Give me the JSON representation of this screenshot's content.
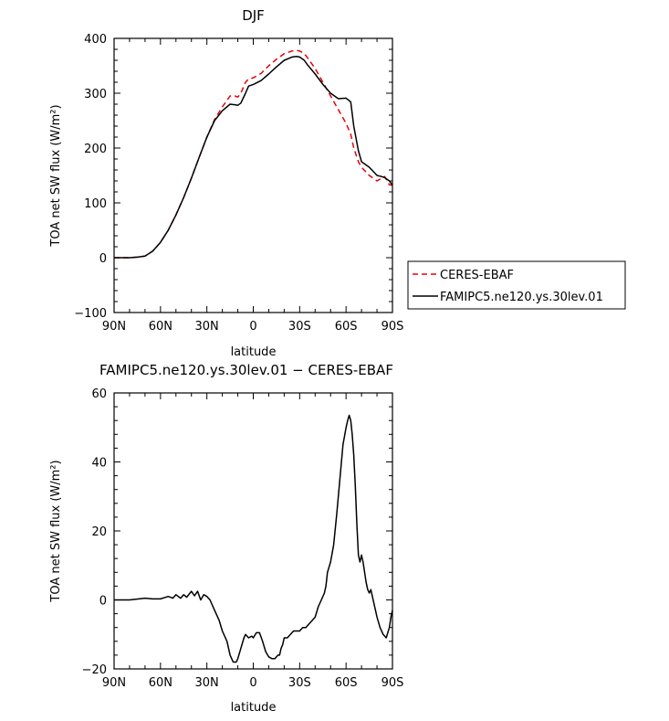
{
  "chart_data": [
    {
      "type": "line",
      "title": "DJF",
      "xlabel": "latitude",
      "ylabel": "TOA net SW flux (W/m²)",
      "x_ticks": [
        {
          "value": -90,
          "label": "90N"
        },
        {
          "value": -60,
          "label": "60N"
        },
        {
          "value": -30,
          "label": "30N"
        },
        {
          "value": 0,
          "label": "0"
        },
        {
          "value": 30,
          "label": "30S"
        },
        {
          "value": 60,
          "label": "60S"
        },
        {
          "value": 90,
          "label": "90S"
        }
      ],
      "y_ticks": [
        -100,
        0,
        100,
        200,
        300,
        400
      ],
      "xlim": [
        -90,
        90
      ],
      "ylim": [
        -100,
        400
      ],
      "legend_position": "outside-right",
      "series": [
        {
          "name": "CERES-EBAF",
          "color": "#e8000b",
          "dash": "dashed",
          "x": [
            -90,
            -80,
            -75,
            -70,
            -65,
            -60,
            -55,
            -50,
            -45,
            -40,
            -35,
            -30,
            -25,
            -20,
            -15,
            -12,
            -10,
            -8,
            -5,
            -3,
            0,
            5,
            10,
            15,
            20,
            25,
            28,
            30,
            33,
            35,
            40,
            45,
            50,
            55,
            60,
            63,
            65,
            68,
            70,
            75,
            80,
            83,
            85,
            88,
            90
          ],
          "y": [
            0,
            0,
            1,
            3,
            12,
            28,
            50,
            78,
            110,
            145,
            183,
            220,
            252,
            275,
            295,
            295,
            293,
            300,
            320,
            326,
            328,
            336,
            350,
            362,
            372,
            377,
            378,
            377,
            372,
            365,
            345,
            320,
            295,
            270,
            245,
            225,
            200,
            175,
            165,
            150,
            140,
            145,
            148,
            133,
            132
          ]
        },
        {
          "name": "FAMIPC5.ne120.ys.30lev.01",
          "color": "#000000",
          "dash": "solid",
          "x": [
            -90,
            -80,
            -75,
            -70,
            -65,
            -60,
            -55,
            -50,
            -45,
            -40,
            -35,
            -30,
            -25,
            -20,
            -15,
            -12,
            -10,
            -8,
            -5,
            -3,
            0,
            5,
            10,
            15,
            20,
            25,
            28,
            30,
            33,
            35,
            40,
            45,
            50,
            55,
            60,
            63,
            65,
            68,
            70,
            75,
            80,
            83,
            85,
            88,
            90
          ],
          "y": [
            0,
            0,
            1,
            3,
            12,
            28,
            50,
            78,
            110,
            145,
            183,
            220,
            250,
            268,
            280,
            279,
            278,
            282,
            300,
            313,
            316,
            323,
            335,
            348,
            360,
            366,
            367,
            366,
            360,
            352,
            335,
            316,
            300,
            290,
            291,
            284,
            240,
            195,
            175,
            165,
            150,
            148,
            146,
            140,
            132
          ]
        }
      ]
    },
    {
      "type": "line",
      "title": "FAMIPC5.ne120.ys.30lev.01 − CERES-EBAF",
      "xlabel": "latitude",
      "ylabel": "TOA net SW flux (W/m²)",
      "x_ticks": [
        {
          "value": -90,
          "label": "90N"
        },
        {
          "value": -60,
          "label": "60N"
        },
        {
          "value": -30,
          "label": "30N"
        },
        {
          "value": 0,
          "label": "0"
        },
        {
          "value": 30,
          "label": "30S"
        },
        {
          "value": 60,
          "label": "60S"
        },
        {
          "value": 90,
          "label": "90S"
        }
      ],
      "y_ticks": [
        -20,
        0,
        20,
        40,
        60
      ],
      "xlim": [
        -90,
        90
      ],
      "ylim": [
        -20,
        60
      ],
      "series": [
        {
          "name": "",
          "color": "#000000",
          "dash": "solid",
          "x": [
            -90,
            -80,
            -70,
            -65,
            -60,
            -55,
            -52,
            -50,
            -47,
            -45,
            -43,
            -40,
            -38,
            -36,
            -34,
            -32,
            -30,
            -28,
            -25,
            -22,
            -20,
            -17,
            -15,
            -13,
            -12,
            -11,
            -10,
            -8,
            -6,
            -5,
            -3,
            -1,
            0,
            2,
            4,
            6,
            8,
            10,
            12,
            14,
            16,
            17,
            18,
            19,
            20,
            22,
            24,
            26,
            28,
            30,
            32,
            34,
            36,
            38,
            40,
            42,
            44,
            46,
            47,
            48,
            50,
            52,
            54,
            56,
            58,
            60,
            61,
            62,
            63,
            64,
            65,
            66,
            67,
            68,
            69,
            70,
            71,
            72,
            73,
            74,
            75,
            76,
            77,
            78,
            79,
            80,
            82,
            84,
            86,
            88,
            89,
            90
          ],
          "y": [
            0,
            0,
            0.5,
            0.3,
            0.3,
            1,
            0.5,
            1.5,
            0.5,
            1.5,
            0.8,
            2.5,
            1.2,
            2.5,
            0,
            1.5,
            1,
            0,
            -3,
            -6,
            -9,
            -12,
            -16,
            -18,
            -18,
            -18,
            -17,
            -14,
            -11,
            -10,
            -11,
            -10.5,
            -11,
            -9.5,
            -9.5,
            -12,
            -15,
            -16.5,
            -17,
            -17,
            -16,
            -16,
            -14,
            -13,
            -11,
            -11,
            -10,
            -9,
            -9,
            -9,
            -8,
            -8,
            -7,
            -6,
            -5,
            -2,
            0,
            2,
            4,
            8,
            11,
            16,
            25,
            35,
            45,
            50,
            52,
            53.5,
            52,
            48,
            42,
            33,
            22,
            13,
            11,
            13,
            11,
            8,
            5,
            3,
            2,
            3,
            1,
            -1,
            -3,
            -5,
            -8,
            -10,
            -11,
            -8,
            -5,
            -3
          ]
        }
      ]
    }
  ]
}
